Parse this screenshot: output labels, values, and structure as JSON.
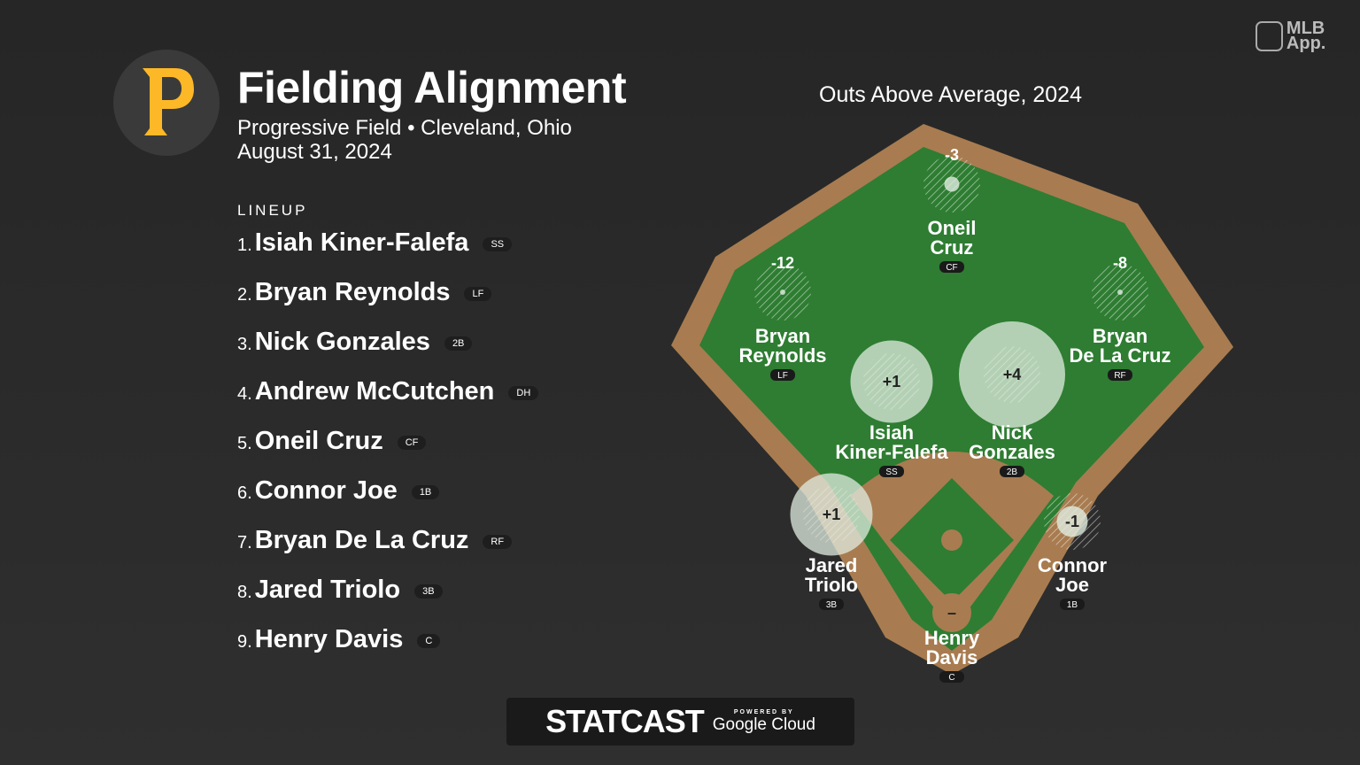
{
  "header": {
    "title": "Fielding Alignment",
    "venue": "Progressive Field • Cleveland, Ohio",
    "date": "August 31, 2024",
    "team_logo": "pirates-p-logo",
    "team_color": "#FDB827"
  },
  "lineup": {
    "heading": "LINEUP",
    "players": [
      {
        "num": "1.",
        "name": "Isiah Kiner-Falefa",
        "pos": "SS"
      },
      {
        "num": "2.",
        "name": "Bryan Reynolds",
        "pos": "LF"
      },
      {
        "num": "3.",
        "name": "Nick Gonzales",
        "pos": "2B"
      },
      {
        "num": "4.",
        "name": "Andrew McCutchen",
        "pos": "DH"
      },
      {
        "num": "5.",
        "name": "Oneil Cruz",
        "pos": "CF"
      },
      {
        "num": "6.",
        "name": "Connor Joe",
        "pos": "1B"
      },
      {
        "num": "7.",
        "name": "Bryan De La Cruz",
        "pos": "RF"
      },
      {
        "num": "8.",
        "name": "Jared Triolo",
        "pos": "3B"
      },
      {
        "num": "9.",
        "name": "Henry Davis",
        "pos": "C"
      }
    ]
  },
  "field": {
    "title": "Outs Above Average, 2024",
    "colors": {
      "grass": "#2e7d32",
      "dirt": "#a87c50"
    },
    "players": [
      {
        "first": "Oneil",
        "last": "Cruz",
        "pos": "CF",
        "oaa": "-3"
      },
      {
        "first": "Bryan",
        "last": "Reynolds",
        "pos": "LF",
        "oaa": "-12"
      },
      {
        "first": "Bryan",
        "last": "De La Cruz",
        "pos": "RF",
        "oaa": "-8"
      },
      {
        "first": "Isiah",
        "last": "Kiner-Falefa",
        "pos": "SS",
        "oaa": "+1"
      },
      {
        "first": "Nick",
        "last": "Gonzales",
        "pos": "2B",
        "oaa": "+4"
      },
      {
        "first": "Jared",
        "last": "Triolo",
        "pos": "3B",
        "oaa": "+1"
      },
      {
        "first": "Connor",
        "last": "Joe",
        "pos": "1B",
        "oaa": "-1"
      },
      {
        "first": "Henry",
        "last": "Davis",
        "pos": "C",
        "oaa": "–"
      }
    ]
  },
  "branding": {
    "mlb_app": "MLB App.",
    "statcast": "STATCAST",
    "powered_by": "POWERED BY",
    "google_cloud": "Google Cloud"
  }
}
